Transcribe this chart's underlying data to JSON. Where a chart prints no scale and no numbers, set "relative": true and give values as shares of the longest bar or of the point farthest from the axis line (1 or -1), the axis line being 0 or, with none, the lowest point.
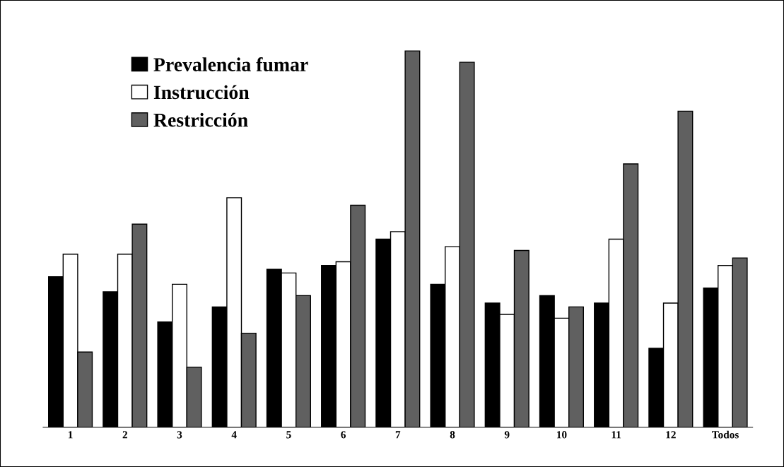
{
  "chart_data": {
    "type": "bar",
    "relative": true,
    "legend": "top left",
    "grid": false,
    "categories": [
      "1",
      "2",
      "3",
      "4",
      "5",
      "6",
      "7",
      "8",
      "9",
      "10",
      "11",
      "12",
      "Todos"
    ],
    "series": [
      {
        "name": "Prevalencia fumar",
        "color": "#000000",
        "values": [
          0.4,
          0.36,
          0.28,
          0.32,
          0.42,
          0.43,
          0.5,
          0.38,
          0.33,
          0.35,
          0.33,
          0.21,
          0.37
        ]
      },
      {
        "name": "Instrucción",
        "color": "#ffffff",
        "values": [
          0.46,
          0.46,
          0.38,
          0.61,
          0.41,
          0.44,
          0.52,
          0.48,
          0.3,
          0.29,
          0.5,
          0.33,
          0.43
        ]
      },
      {
        "name": "Restricción",
        "color": "#606060",
        "values": [
          0.2,
          0.54,
          0.16,
          0.25,
          0.35,
          0.59,
          1,
          0.97,
          0.47,
          0.32,
          0.7,
          0.84,
          0.45
        ]
      }
    ]
  }
}
